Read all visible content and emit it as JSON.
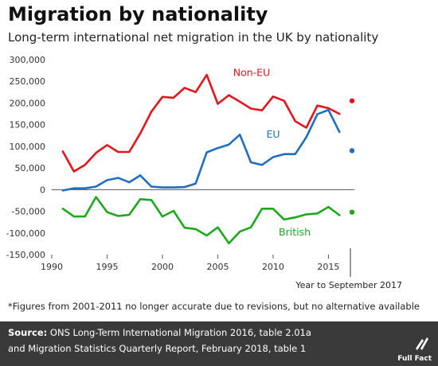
{
  "title": "Migration by nationality",
  "subtitle": "Long-term international net migration in the UK by nationality",
  "footnote": "*Figures from 2001-2011 no longer accurate due to revisions, but no alternative available",
  "source": {
    "label": "Source:",
    "line1": " ONS Long-Term International Migration 2016, table 2.01a",
    "line2": "and Migration Statistics Quarterly Report, February 2018, table 1"
  },
  "brand": "Full Fact",
  "colors": {
    "Non-EU": "#e4161b",
    "EU": "#1f6fc0",
    "British": "#1ea81e",
    "background": "#ffffff",
    "source_bar": "#3a3a3a"
  },
  "chart_data": {
    "type": "line",
    "x": [
      1991,
      1992,
      1993,
      1994,
      1995,
      1996,
      1997,
      1998,
      1999,
      2000,
      2001,
      2002,
      2003,
      2004,
      2005,
      2006,
      2007,
      2008,
      2009,
      2010,
      2011,
      2012,
      2013,
      2014,
      2015,
      2016
    ],
    "series": [
      {
        "name": "Non-EU",
        "values": [
          88000,
          42000,
          57000,
          85000,
          103000,
          87000,
          87000,
          130000,
          180000,
          214000,
          212000,
          235000,
          225000,
          265000,
          198000,
          218000,
          203000,
          187000,
          183000,
          215000,
          205000,
          158000,
          143000,
          194000,
          188000,
          175000
        ]
      },
      {
        "name": "EU",
        "values": [
          -2000,
          3000,
          3000,
          7000,
          22000,
          27000,
          17000,
          33000,
          7000,
          5000,
          5000,
          6000,
          14000,
          86000,
          96000,
          104000,
          127000,
          63000,
          57000,
          75000,
          82000,
          82000,
          121000,
          174000,
          184000,
          133000
        ]
      },
      {
        "name": "British",
        "values": [
          -44000,
          -62000,
          -62000,
          -17000,
          -52000,
          -61000,
          -58000,
          -22000,
          -24000,
          -62000,
          -49000,
          -88000,
          -91000,
          -106000,
          -87000,
          -124000,
          -97000,
          -87000,
          -44000,
          -44000,
          -69000,
          -64000,
          -57000,
          -55000,
          -40000,
          -59000
        ]
      }
    ],
    "latest_points": [
      {
        "name": "Non-EU",
        "value": 205000
      },
      {
        "name": "EU",
        "value": 90000
      },
      {
        "name": "British",
        "value": -52000
      }
    ],
    "latest_label": "Year to September 2017",
    "xticks": [
      1990,
      1995,
      2000,
      2005,
      2010,
      2015
    ],
    "xtick_labels": [
      "1990",
      "1995",
      "2000",
      "2005",
      "2010",
      "2015"
    ],
    "yticks": [
      -150000,
      -100000,
      -50000,
      0,
      50000,
      100000,
      150000,
      200000,
      250000,
      300000
    ],
    "ytick_labels": [
      "-150,000",
      "-100,000",
      "-50,000",
      "0",
      "50,000",
      "100,000",
      "150,000",
      "200,000",
      "250,000",
      "300,000"
    ],
    "xlim": [
      1990,
      2017.2
    ],
    "ylim": [
      -150000,
      300000
    ],
    "grid": false
  }
}
